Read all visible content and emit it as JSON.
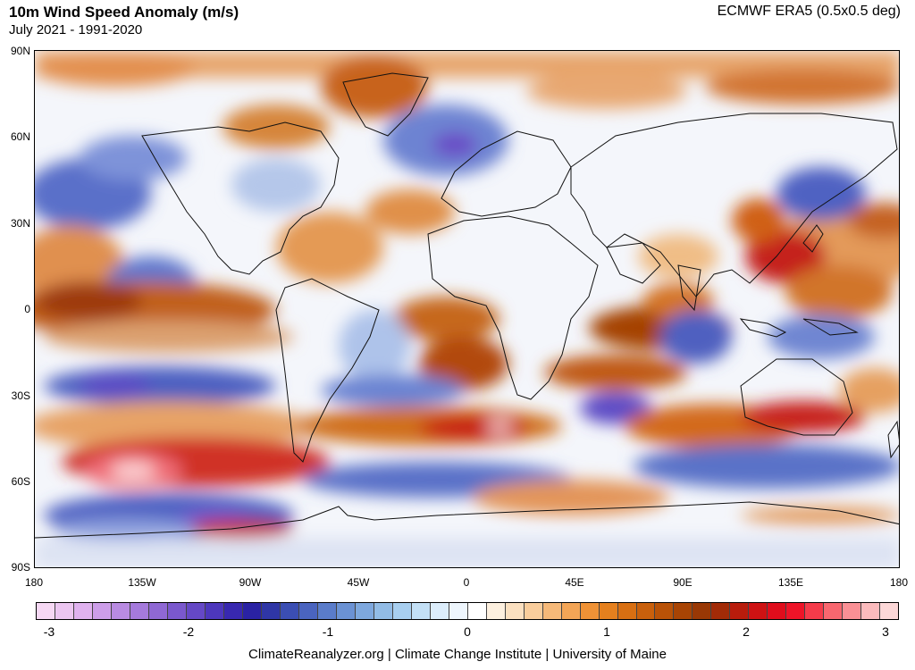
{
  "header": {
    "title": "10m Wind Speed Anomaly (m/s)",
    "subtitle": "July 2021 - 1991-2020",
    "source": "ECMWF ERA5 (0.5x0.5 deg)"
  },
  "map": {
    "projection": "equirectangular",
    "lat_ticks": [
      "90N",
      "60N",
      "30N",
      "0",
      "30S",
      "60S",
      "90S"
    ],
    "lon_ticks": [
      "180",
      "135W",
      "90W",
      "45W",
      "0",
      "45E",
      "90E",
      "135E",
      "180"
    ]
  },
  "colorbar": {
    "min": -3,
    "max": 3,
    "tick_labels": [
      "-3",
      "-2",
      "-1",
      "0",
      "1",
      "2",
      "3"
    ],
    "colors": [
      "#f6d8f4",
      "#ecc6f1",
      "#e0b2ef",
      "#cd9ee9",
      "#b98be2",
      "#a57adc",
      "#8f68d4",
      "#7a58cd",
      "#6548c6",
      "#4d37bd",
      "#3828b0",
      "#2a22a4",
      "#2f36a6",
      "#3b4eb3",
      "#4a64bf",
      "#5a7cca",
      "#6b92d4",
      "#7ea8de",
      "#92bce6",
      "#a8cff0",
      "#c3e0f6",
      "#dcedfb",
      "#eef6fd",
      "#ffffff",
      "#fdf0df",
      "#fbe0c0",
      "#f9cd9c",
      "#f6b979",
      "#f3a556",
      "#ef9236",
      "#e5801e",
      "#d86f12",
      "#c9600c",
      "#b95207",
      "#a84404",
      "#993805",
      "#a22b07",
      "#b81c0c",
      "#ce1213",
      "#e00d1c",
      "#ee1428",
      "#f53b4a",
      "#f8676f",
      "#fa9095",
      "#fcbbbd",
      "#fdd8d8"
    ]
  },
  "footer": {
    "credit": "ClimateReanalyzer.org | Climate Change Institute | University of Maine"
  }
}
